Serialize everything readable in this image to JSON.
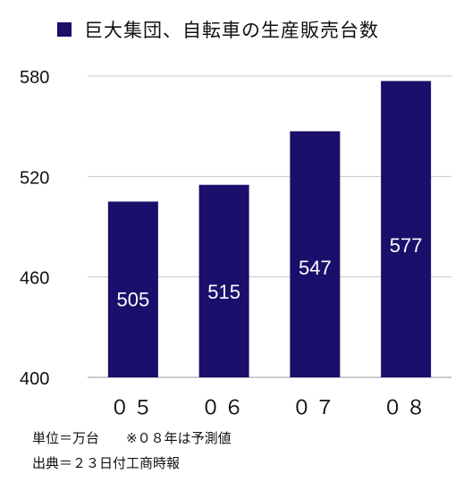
{
  "chart_data": {
    "type": "bar",
    "categories": [
      "０５",
      "０６",
      "０７",
      "０８"
    ],
    "values": [
      505,
      515,
      547,
      577
    ],
    "data_labels": [
      "505",
      "515",
      "547",
      "577"
    ],
    "series": [
      {
        "name": "巨大集団、自転車の生産販売台数",
        "values": [
          505,
          515,
          547,
          577
        ]
      }
    ],
    "ylim": [
      400,
      580
    ],
    "yticks": [
      400,
      460,
      520,
      580
    ],
    "ytick_labels": [
      "400",
      "460",
      "520",
      "580"
    ],
    "grid": true,
    "legend": "top",
    "bar_color": "#1a0f6b",
    "grid_color": "#c8c8c8",
    "label_color": "#ffffff"
  },
  "notes": {
    "unit": "単位＝万台　　※０８年は予測値",
    "source": "出典＝２３日付工商時報"
  }
}
